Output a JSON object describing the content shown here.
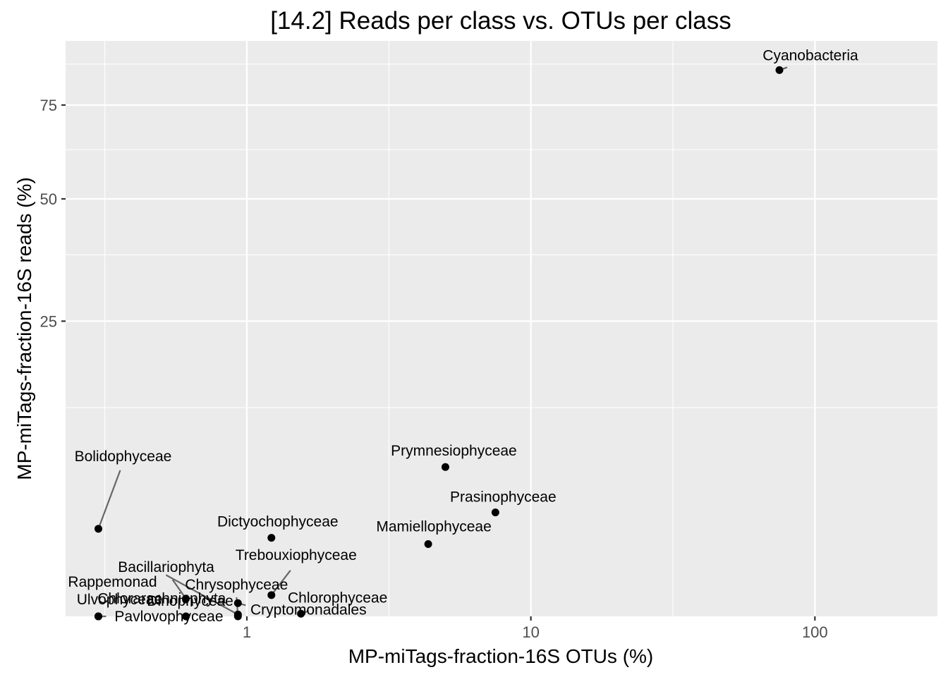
{
  "chart_data": {
    "type": "scatter",
    "title": "[14.2] Reads per class vs. OTUs per class",
    "xlabel": "MP-miTags-fraction-16S OTUs (%)",
    "ylabel": "MP-miTags-fraction-16S reads (%)",
    "x_scale": "log10",
    "y_scale": "sqrt",
    "x_ticks": [
      1,
      10,
      100
    ],
    "x_tick_labels": [
      "1",
      "10",
      "100"
    ],
    "y_ticks": [
      25,
      50,
      75
    ],
    "y_tick_labels": [
      "25",
      "50",
      "75"
    ],
    "xlim": [
      0.23,
      270
    ],
    "ylim": [
      0,
      95
    ],
    "grid": true,
    "legend": "none",
    "colors": {
      "panel": "#ebebeb",
      "grid": "#ffffff",
      "point": "#000000",
      "segment": "#666666",
      "tick": "#333333",
      "tick_label": "#4d4d4d"
    },
    "points": [
      {
        "label": "Cyanobacteria",
        "x": 75,
        "y": 85.6
      },
      {
        "label": "Prymnesiophyceae",
        "x": 5.0,
        "y": 6.4
      },
      {
        "label": "Prasinophyceae",
        "x": 7.5,
        "y": 3.1
      },
      {
        "label": "Dictyochophyceae",
        "x": 1.22,
        "y": 1.77
      },
      {
        "label": "Mamiellophyceae",
        "x": 4.35,
        "y": 1.5
      },
      {
        "label": "Bacillariophyta",
        "x": 0.61,
        "y": 0.09
      },
      {
        "label": "Chrysophyceae",
        "x": 0.93,
        "y": 0.0
      },
      {
        "label": "Trebouxiophyceae",
        "x": 1.22,
        "y": 0.13
      },
      {
        "label": "Chlorophyceae",
        "x": 1.55,
        "y": 0.002
      },
      {
        "label": "Chlorarachniophyta",
        "x": 0.93,
        "y": 0.001
      },
      {
        "label": "Cryptomonadales",
        "x": 0.93,
        "y": 0.05
      },
      {
        "label": "Bolidophyceae",
        "x": 0.3,
        "y": 2.2
      },
      {
        "label": "Dinophyceae",
        "x": 0.61,
        "y": 0.0
      },
      {
        "label": "Rappemonad",
        "x": 0.3,
        "y": 0.0
      },
      {
        "label": "Ulvophyceae",
        "x": 0.3,
        "y": 0.0
      },
      {
        "label": "Pavlovophyceae",
        "x": 0.3,
        "y": 0.0
      }
    ]
  }
}
